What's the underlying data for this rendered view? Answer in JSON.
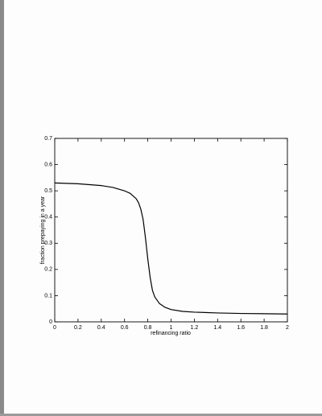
{
  "chart_data": {
    "type": "line",
    "xlabel": "refinancing ratio",
    "ylabel": "fraction prepaying in a year",
    "x": [
      0,
      0.2,
      0.4,
      0.5,
      0.6,
      0.65,
      0.7,
      0.72,
      0.74,
      0.76,
      0.78,
      0.8,
      0.82,
      0.84,
      0.86,
      0.9,
      0.95,
      1,
      1.1,
      1.2,
      1.4,
      1.6,
      1.8,
      2
    ],
    "values": [
      0.53,
      0.527,
      0.52,
      0.513,
      0.5,
      0.49,
      0.47,
      0.455,
      0.43,
      0.39,
      0.32,
      0.24,
      0.17,
      0.12,
      0.095,
      0.07,
      0.055,
      0.047,
      0.04,
      0.037,
      0.034,
      0.032,
      0.031,
      0.03
    ],
    "color": "#000000",
    "xlim": [
      0,
      2
    ],
    "xticks": [
      0,
      0.2,
      0.4,
      0.6,
      0.8,
      1,
      1.2,
      1.4,
      1.6,
      1.8,
      2
    ],
    "ylim": [
      0,
      0.7
    ],
    "yticks": [
      0,
      0.1,
      0.2,
      0.3,
      0.4,
      0.5,
      0.6,
      0.7
    ]
  }
}
